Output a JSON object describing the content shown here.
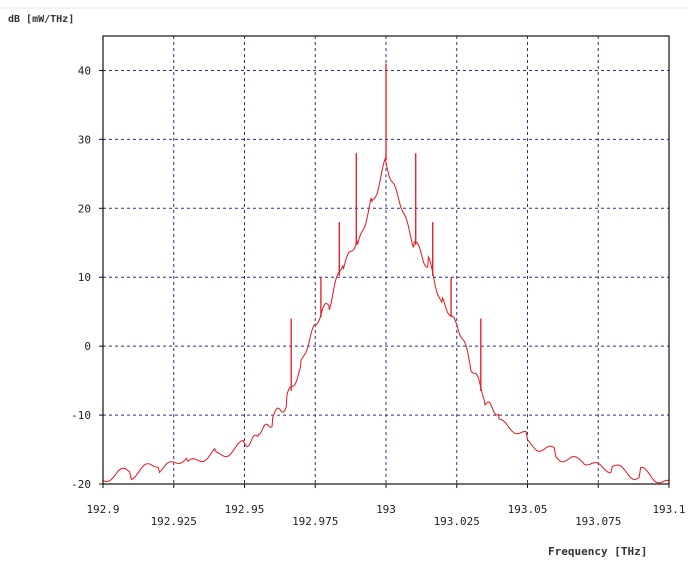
{
  "chart_data": {
    "type": "line",
    "title": "",
    "ylabel": "dB [mW/THz]",
    "xlabel": "Frequency [THz]",
    "xlim": [
      192.9,
      193.1
    ],
    "ylim": [
      -20,
      45
    ],
    "xticks": [
      192.9,
      192.925,
      192.95,
      192.975,
      193,
      193.025,
      193.05,
      193.075,
      193.1
    ],
    "xtick_labels": [
      "192.9",
      "192.925",
      "192.95",
      "192.975",
      "193",
      "193.025",
      "193.05",
      "193.075",
      "193.1"
    ],
    "yticks": [
      -20,
      -10,
      0,
      10,
      20,
      30,
      40
    ],
    "ytick_labels": [
      "-20",
      "-10",
      "0",
      "10",
      "20",
      "30",
      "40"
    ],
    "grid": true,
    "series": [
      {
        "color": "#e8141c",
        "x": [
          192.9,
          192.91,
          192.92,
          192.93,
          192.94,
          192.95,
          192.955,
          192.96,
          192.965,
          192.97,
          192.975,
          192.98,
          192.985,
          192.99,
          192.995,
          193,
          193.005,
          193.01,
          193.015,
          193.02,
          193.025,
          193.03,
          193.035,
          193.04,
          193.05,
          193.06,
          193.07,
          193.08,
          193.09,
          193.1
        ],
        "y": [
          -19.5,
          -18.5,
          -17.5,
          -16.5,
          -15.5,
          -14,
          -12.5,
          -10.5,
          -8,
          -3,
          3,
          6,
          12,
          15,
          21,
          27,
          21,
          15,
          12,
          6,
          3,
          -3,
          -8,
          -10.5,
          -13.5,
          -15.5,
          -16.5,
          -17.5,
          -18.5,
          -19.5
        ]
      }
    ],
    "spikes": [
      {
        "x": 192.9665,
        "y": 4
      },
      {
        "x": 192.977,
        "y": 10
      },
      {
        "x": 192.9835,
        "y": 18
      },
      {
        "x": 192.9895,
        "y": 28
      },
      {
        "x": 193,
        "y": 41
      },
      {
        "x": 193.0105,
        "y": 28
      },
      {
        "x": 193.0165,
        "y": 18
      },
      {
        "x": 193.023,
        "y": 10
      },
      {
        "x": 193.0335,
        "y": 4
      }
    ]
  }
}
